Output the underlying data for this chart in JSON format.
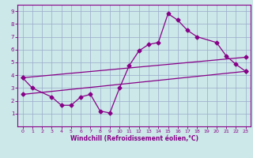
{
  "background_color": "#cce8e8",
  "plot_bg_color": "#cce8e8",
  "line_color": "#880088",
  "grid_color": "#99aacc",
  "spine_color": "#880088",
  "xlabel": "Windchill (Refroidissement éolien,°C)",
  "xlabel_color": "#880088",
  "xlim": [
    -0.5,
    23.5
  ],
  "ylim": [
    0,
    9.5
  ],
  "xticks": [
    0,
    1,
    2,
    3,
    4,
    5,
    6,
    7,
    8,
    9,
    10,
    11,
    12,
    13,
    14,
    15,
    16,
    17,
    18,
    19,
    20,
    21,
    22,
    23
  ],
  "yticks": [
    1,
    2,
    3,
    4,
    5,
    6,
    7,
    8,
    9
  ],
  "line1_x": [
    0,
    1,
    3,
    4,
    5,
    6,
    7,
    8,
    9,
    10,
    11,
    12,
    13,
    14,
    15,
    16,
    17,
    18,
    20,
    21,
    22,
    23
  ],
  "line1_y": [
    3.8,
    3.0,
    2.3,
    1.65,
    1.65,
    2.3,
    2.5,
    1.2,
    1.05,
    3.0,
    4.75,
    5.9,
    6.4,
    6.55,
    8.8,
    8.3,
    7.5,
    7.0,
    6.55,
    5.5,
    4.85,
    4.3
  ],
  "line2_x": [
    0,
    23
  ],
  "line2_y": [
    3.8,
    5.4
  ],
  "line3_x": [
    0,
    23
  ],
  "line3_y": [
    2.5,
    4.3
  ],
  "marker": "D",
  "markersize": 2.5,
  "linewidth": 0.9,
  "tick_labelsize": 5.0,
  "xlabel_fontsize": 5.5,
  "xlabel_fontweight": "bold"
}
